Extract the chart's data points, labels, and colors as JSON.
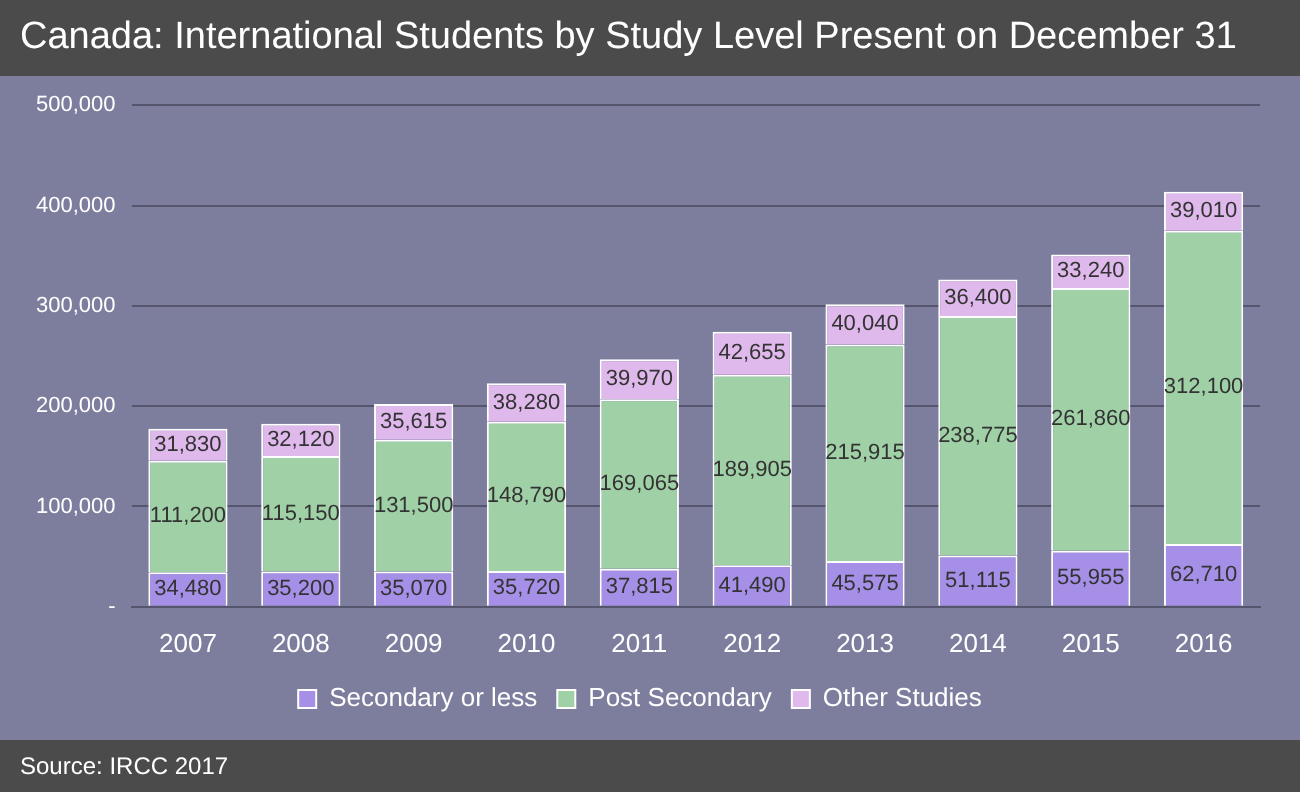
{
  "chart_data": {
    "type": "bar",
    "title": "Canada: International Students by Study Level Present on December 31",
    "categories": [
      "2007",
      "2008",
      "2009",
      "2010",
      "2011",
      "2012",
      "2013",
      "2014",
      "2015",
      "2016"
    ],
    "series": [
      {
        "name": "Secondary or less",
        "color": "#a68fe6",
        "values": [
          34480,
          35200,
          35070,
          35720,
          37815,
          41490,
          45575,
          51115,
          55955,
          62710
        ],
        "value_labels": [
          "34,480",
          "35,200",
          "35,070",
          "35,720",
          "37,815",
          "41,490",
          "45,575",
          "51,115",
          "55,955",
          "62,710"
        ]
      },
      {
        "name": "Post Secondary",
        "color": "#9fd0a6",
        "values": [
          111200,
          115150,
          131500,
          148790,
          169065,
          189905,
          215915,
          238775,
          261860,
          312100
        ],
        "value_labels": [
          "111,200",
          "115,150",
          "131,500",
          "148,790",
          "169,065",
          "189,905",
          "215,915",
          "238,775",
          "261,860",
          "312,100"
        ]
      },
      {
        "name": "Other Studies",
        "color": "#dfb8ec",
        "values": [
          31830,
          32120,
          35615,
          38280,
          39970,
          42655,
          40040,
          36400,
          33240,
          39010
        ],
        "value_labels": [
          "31,830",
          "32,120",
          "35,615",
          "38,280",
          "39,970",
          "42,655",
          "40,040",
          "36,400",
          "33,240",
          "39,010"
        ]
      }
    ],
    "stacked": true,
    "ylim": [
      0,
      500000
    ],
    "yticks": [
      {
        "value": 0,
        "label": "-"
      },
      {
        "value": 100000,
        "label": "100,000"
      },
      {
        "value": 200000,
        "label": "200,000"
      },
      {
        "value": 300000,
        "label": "300,000"
      },
      {
        "value": 400000,
        "label": "400,000"
      },
      {
        "value": 500000,
        "label": "500,000"
      }
    ],
    "grid": "y",
    "legend": "bottom",
    "annotations": [
      "Source: IRCC 2017"
    ]
  }
}
